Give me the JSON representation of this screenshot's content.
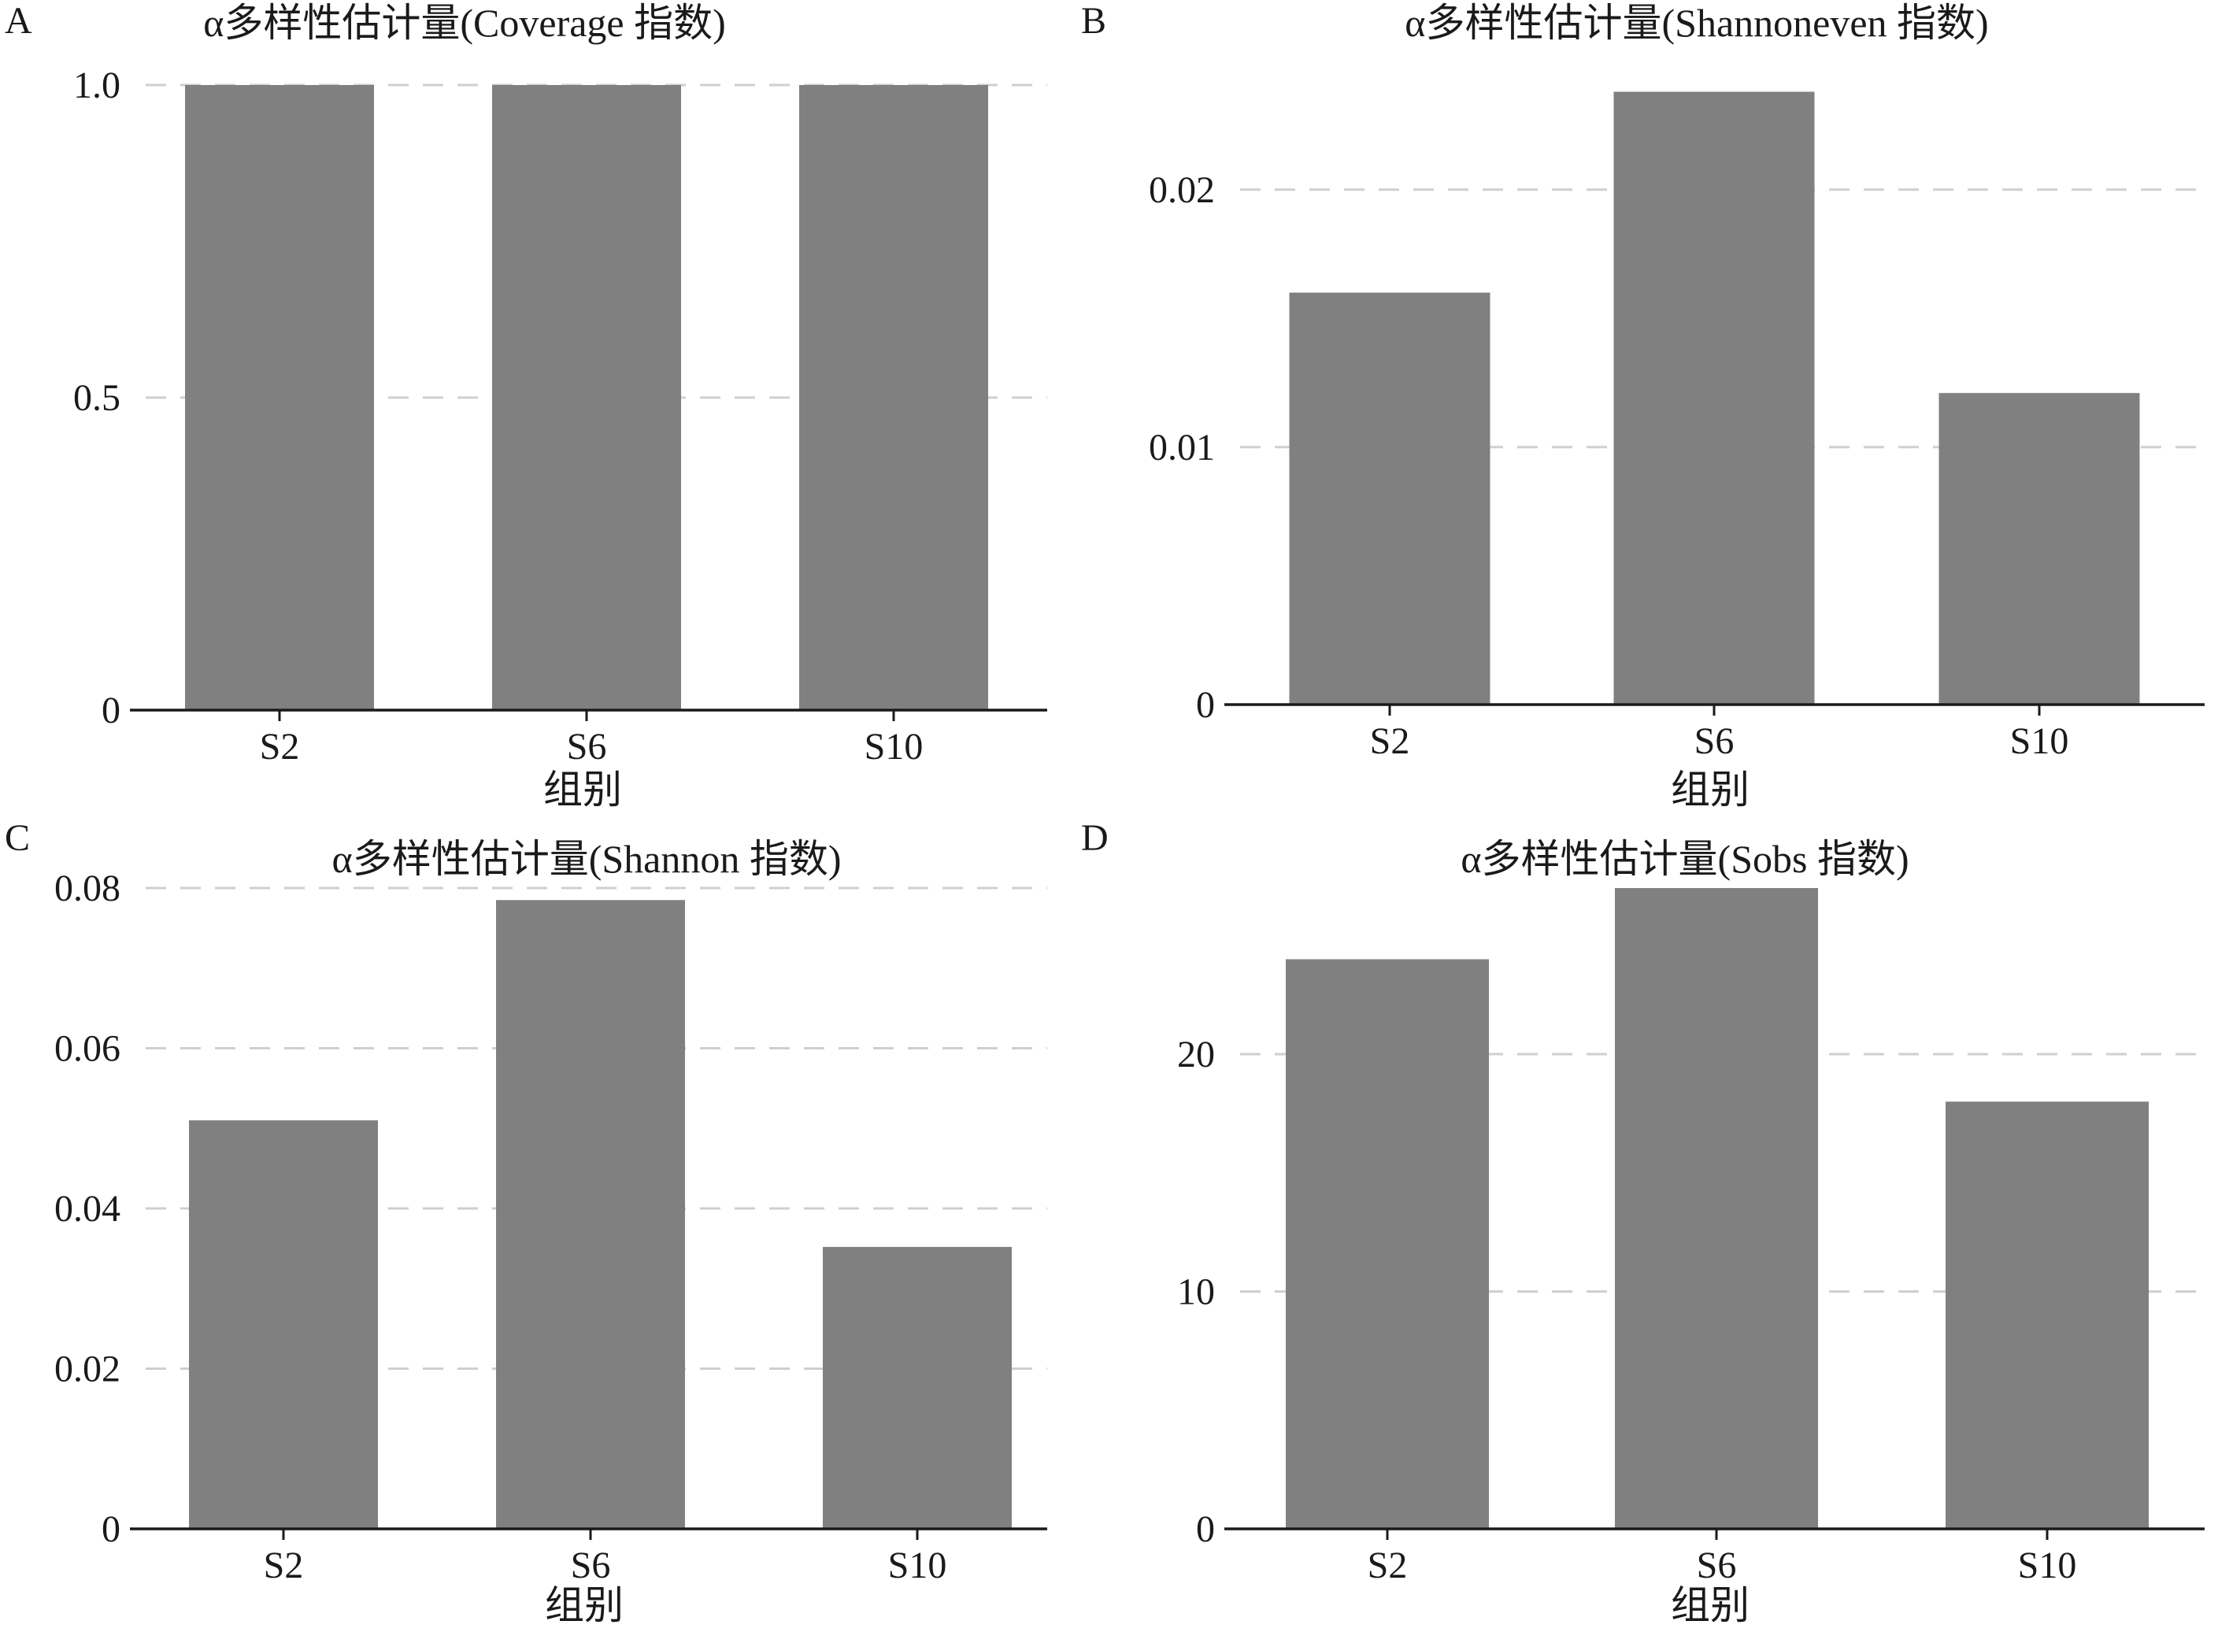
{
  "chart_data": [
    {
      "panel": "A",
      "type": "bar",
      "title": "α多样性估计量(Coverage 指数)",
      "categories": [
        "S2",
        "S6",
        "S10"
      ],
      "values": [
        1.0,
        1.0,
        1.0
      ],
      "yticks": [
        0,
        0.5,
        1.0
      ],
      "ytick_labels": [
        "0",
        "0.5",
        "1.0"
      ],
      "ylim": [
        0,
        1.0
      ],
      "xlabel": "组别",
      "ylabel": "",
      "grid": "horizontal dashed"
    },
    {
      "panel": "B",
      "type": "bar",
      "title": "α多样性估计量(Shannoneven 指数)",
      "categories": [
        "S2",
        "S6",
        "S10"
      ],
      "values": [
        0.016,
        0.0238,
        0.0121
      ],
      "yticks": [
        0,
        0.01,
        0.02
      ],
      "ytick_labels": [
        "0",
        "0.01",
        "0.02"
      ],
      "ylim": [
        0,
        0.024
      ],
      "xlabel": "组别",
      "ylabel": "",
      "grid": "horizontal dashed"
    },
    {
      "panel": "C",
      "type": "bar",
      "title": "α多样性估计量(Shannon 指数)",
      "categories": [
        "S2",
        "S6",
        "S10"
      ],
      "values": [
        0.051,
        0.0785,
        0.0352
      ],
      "yticks": [
        0,
        0.02,
        0.04,
        0.06,
        0.08
      ],
      "ytick_labels": [
        "0",
        "0.02",
        "0.04",
        "0.06",
        "0.08"
      ],
      "ylim": [
        0,
        0.08
      ],
      "xlabel": "组别",
      "ylabel": "",
      "grid": "horizontal dashed"
    },
    {
      "panel": "D",
      "type": "bar",
      "title": "α多样性估计量(Sobs 指数)",
      "categories": [
        "S2",
        "S6",
        "S10"
      ],
      "values": [
        24,
        27,
        18
      ],
      "yticks": [
        0,
        10,
        20
      ],
      "ytick_labels": [
        "0",
        "10",
        "20"
      ],
      "ylim": [
        0,
        27
      ],
      "xlabel": "组别",
      "ylabel": "",
      "grid": "horizontal dashed"
    }
  ],
  "colors": {
    "bar": "#808080",
    "grid": "#cfcfcf",
    "axis": "#1a1a1a"
  }
}
